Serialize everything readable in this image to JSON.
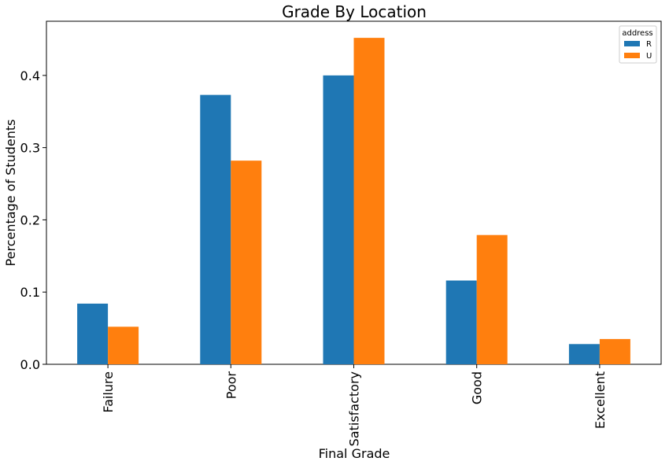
{
  "chart_data": {
    "type": "bar",
    "title": "Grade By Location",
    "xlabel": "Final Grade",
    "ylabel": "Percentage of Students",
    "categories": [
      "Failure",
      "Poor",
      "Satisfactory",
      "Good",
      "Excellent"
    ],
    "series": [
      {
        "name": "R",
        "color": "#1f77b4",
        "values": [
          0.084,
          0.373,
          0.4,
          0.116,
          0.028
        ]
      },
      {
        "name": "U",
        "color": "#ff7f0e",
        "values": [
          0.052,
          0.282,
          0.452,
          0.179,
          0.035
        ]
      }
    ],
    "ylim": [
      0,
      0.475
    ],
    "yticks": [
      "0.0",
      "0.1",
      "0.2",
      "0.3",
      "0.4"
    ],
    "legend": {
      "title": "address",
      "placement": "top-right"
    },
    "grid": false
  }
}
